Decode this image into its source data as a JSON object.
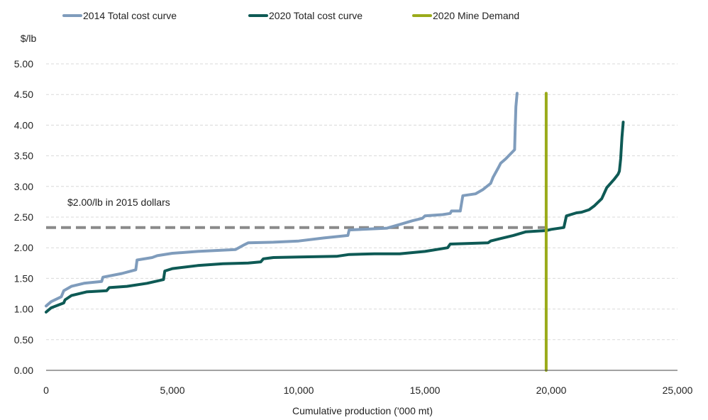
{
  "chart_data": {
    "type": "line",
    "ylabel": "$/lb",
    "xlabel": "Cumulative production ('000 mt)",
    "xlim": [
      0,
      25000
    ],
    "ylim": [
      0,
      5
    ],
    "x_ticks": [
      0,
      5000,
      10000,
      15000,
      20000,
      25000
    ],
    "x_tick_labels": [
      "0",
      "5,000",
      "10,000",
      "15,000",
      "20,000",
      "25,000"
    ],
    "y_ticks": [
      0,
      0.5,
      1.0,
      1.5,
      2.0,
      2.5,
      3.0,
      3.5,
      4.0,
      4.5,
      5.0
    ],
    "y_tick_labels": [
      "0.00",
      "0.50",
      "1.00",
      "1.50",
      "2.00",
      "2.50",
      "3.00",
      "3.50",
      "4.00",
      "4.50",
      "5.00"
    ],
    "grid": "horizontal dashed",
    "legend_position": "top",
    "series": [
      {
        "name": "2014 Total cost curve",
        "color": "#7f9cbc",
        "x": [
          0,
          200,
          600,
          700,
          1000,
          1500,
          2200,
          2250,
          3000,
          3550,
          3600,
          4200,
          4400,
          5000,
          6000,
          7500,
          7850,
          8000,
          9000,
          10000,
          11000,
          11950,
          12000,
          13500,
          14000,
          14500,
          14900,
          15000,
          15700,
          16000,
          16050,
          16400,
          16500,
          17000,
          17300,
          17600,
          17700,
          17900,
          18000,
          18200,
          18550,
          18570,
          18600,
          18650
        ],
        "y": [
          1.05,
          1.12,
          1.2,
          1.3,
          1.37,
          1.42,
          1.45,
          1.52,
          1.58,
          1.64,
          1.8,
          1.84,
          1.87,
          1.91,
          1.94,
          1.97,
          2.05,
          2.08,
          2.09,
          2.11,
          2.16,
          2.2,
          2.29,
          2.32,
          2.38,
          2.44,
          2.48,
          2.52,
          2.54,
          2.56,
          2.6,
          2.6,
          2.85,
          2.88,
          2.95,
          3.05,
          3.15,
          3.3,
          3.38,
          3.45,
          3.6,
          3.9,
          4.3,
          4.52
        ]
      },
      {
        "name": "2020 Total cost curve",
        "color": "#0e5a55",
        "x": [
          0,
          200,
          700,
          750,
          1000,
          1600,
          2400,
          2500,
          3200,
          4000,
          4650,
          4700,
          5000,
          6000,
          7000,
          8000,
          8500,
          8600,
          9000,
          10000,
          11500,
          12000,
          13000,
          14000,
          15000,
          15900,
          16000,
          17500,
          17600,
          18000,
          18500,
          19000,
          19800,
          20000,
          20500,
          20600,
          21000,
          21200,
          21500,
          21700,
          22000,
          22200,
          22500,
          22650,
          22700,
          22750,
          22800,
          22850
        ],
        "y": [
          0.95,
          1.02,
          1.1,
          1.15,
          1.22,
          1.28,
          1.3,
          1.35,
          1.37,
          1.42,
          1.48,
          1.62,
          1.66,
          1.71,
          1.74,
          1.75,
          1.77,
          1.82,
          1.84,
          1.85,
          1.86,
          1.89,
          1.9,
          1.9,
          1.94,
          2.0,
          2.06,
          2.08,
          2.11,
          2.15,
          2.2,
          2.26,
          2.28,
          2.3,
          2.33,
          2.52,
          2.57,
          2.58,
          2.62,
          2.68,
          2.8,
          2.98,
          3.12,
          3.2,
          3.25,
          3.45,
          3.8,
          4.05
        ]
      },
      {
        "name": "2020 Mine Demand",
        "color": "#9aab1a",
        "x": [
          19800,
          19800
        ],
        "y": [
          0,
          4.52
        ]
      }
    ],
    "reference_line": {
      "y": 2.33,
      "x_range": [
        0,
        20000
      ],
      "color": "#8a8a8a"
    },
    "annotations": [
      {
        "text": "$2.00/lb in 2015 dollars",
        "x": 500,
        "y": 2.78
      }
    ]
  }
}
